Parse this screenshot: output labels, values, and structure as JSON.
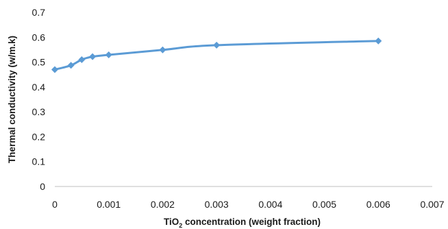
{
  "chart_data": {
    "type": "line",
    "title": "",
    "xlabel_main": "TiO",
    "xlabel_sub": "2",
    "xlabel_rest": " concentration (weight fraction)",
    "ylabel": "Thermal conductivity (w/m.k)",
    "xlim": [
      0,
      0.007
    ],
    "ylim": [
      0,
      0.7
    ],
    "x_ticks": [
      "0",
      "0.001",
      "0.002",
      "0.003",
      "0.004",
      "0.005",
      "0.006",
      "0.007"
    ],
    "y_ticks": [
      "0",
      "0.1",
      "0.2",
      "0.3",
      "0.4",
      "0.5",
      "0.6",
      "0.7"
    ],
    "grid": false,
    "legend": "none",
    "series": [
      {
        "color": "#5B9BD5",
        "marker": "diamond",
        "x": [
          0,
          0.0003,
          0.0005,
          0.0007,
          0.001,
          0.002,
          0.003,
          0.006
        ],
        "y": [
          0.47,
          0.487,
          0.51,
          0.522,
          0.529,
          0.549,
          0.568,
          0.585
        ]
      }
    ]
  }
}
